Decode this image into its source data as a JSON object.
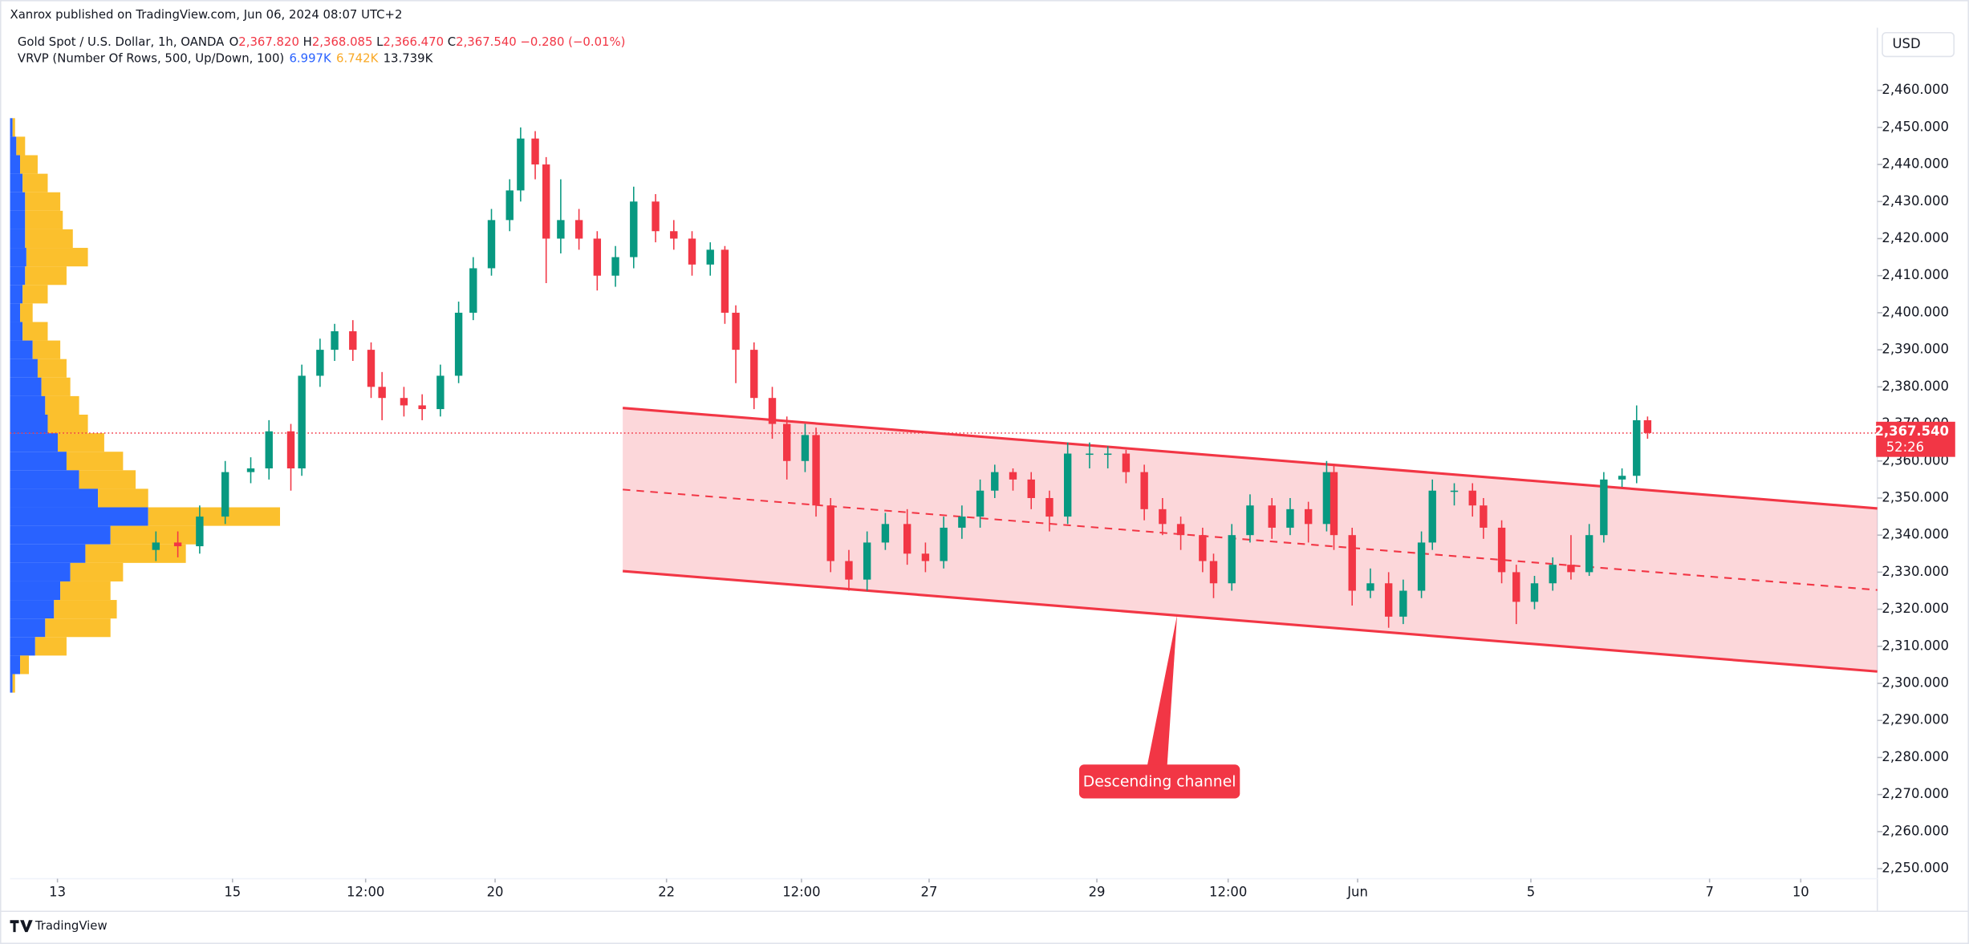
{
  "header": {
    "published": "Xanrox published on TradingView.com, Jun 06, 2024 08:07 UTC+2",
    "currency": "USD",
    "brand": "TradingView"
  },
  "chart_data": {
    "type": "candlestick",
    "title": "Gold Spot / U.S. Dollar, 1h, OANDA",
    "legend_values": [
      {
        "key": "O",
        "value": 2367.82,
        "label": "2,367.820"
      },
      {
        "key": "H",
        "value": 2368.085,
        "label": "2,368.085"
      },
      {
        "key": "L",
        "value": 2366.47,
        "label": "2,366.470"
      },
      {
        "key": "C",
        "value": 2367.54,
        "label": "2,367.540"
      }
    ],
    "change": {
      "value": -0.28,
      "label": "−0.280 (−0.01%)"
    },
    "indicator": {
      "title": "VRVP (Number Of Rows, 500, Up/Down, 100)",
      "values": [
        {
          "value": 6997,
          "label": "6.997K",
          "color": "#2962ff"
        },
        {
          "value": 6742,
          "label": "6.742K",
          "color": "#f9a825"
        },
        {
          "value": 13739,
          "label": "13.739K",
          "color": "#131722"
        }
      ]
    },
    "x": [
      40,
      46,
      52,
      59,
      66,
      71,
      77,
      80,
      85,
      89,
      94,
      99,
      102,
      108,
      113,
      118,
      123,
      127,
      132,
      137,
      140,
      144,
      147,
      151,
      156,
      161,
      166,
      171,
      177,
      182,
      187,
      192,
      196,
      199,
      204,
      209,
      213,
      218,
      221,
      225,
      230,
      235,
      240,
      246,
      251,
      256,
      261,
      266,
      270,
      275,
      280,
      285,
      290,
      296,
      301,
      306,
      311,
      316,
      321,
      327,
      330,
      335,
      340,
      346,
      351,
      356,
      361,
      363,
      368,
      373,
      378,
      382,
      387,
      390,
      396,
      401,
      404,
      409,
      413,
      418,
      423,
      428,
      433,
      437,
      442,
      446,
      449
    ],
    "open": [
      2336,
      2338,
      2337,
      2345,
      2357,
      2358,
      2368,
      2358,
      2383,
      2390,
      2395,
      2390,
      2380,
      2377,
      2375,
      2374,
      2383,
      2400,
      2412,
      2425,
      2433,
      2447,
      2440,
      2420,
      2425,
      2420,
      2410,
      2415,
      2430,
      2422,
      2420,
      2413,
      2417,
      2400,
      2390,
      2377,
      2370,
      2360,
      2367,
      2348,
      2333,
      2328,
      2338,
      2343,
      2335,
      2333,
      2342,
      2345,
      2352,
      2357,
      2355,
      2350,
      2345,
      2362,
      2362,
      2362,
      2357,
      2347,
      2343,
      2340,
      2333,
      2327,
      2340,
      2348,
      2342,
      2347,
      2343,
      2357,
      2340,
      2325,
      2327,
      2318,
      2325,
      2338,
      2352,
      2352,
      2348,
      2342,
      2330,
      2322,
      2327,
      2332,
      2330,
      2340,
      2355,
      2356,
      2371
    ],
    "high": [
      2341,
      2341,
      2348,
      2360,
      2361,
      2371,
      2370,
      2386,
      2393,
      2397,
      2398,
      2392,
      2384,
      2380,
      2378,
      2386,
      2403,
      2415,
      2428,
      2436,
      2450,
      2449,
      2442,
      2436,
      2428,
      2422,
      2418,
      2434,
      2432,
      2425,
      2422,
      2419,
      2418,
      2402,
      2392,
      2380,
      2372,
      2370,
      2369,
      2350,
      2336,
      2341,
      2346,
      2347,
      2338,
      2345,
      2348,
      2355,
      2359,
      2358,
      2357,
      2352,
      2365,
      2365,
      2364,
      2363,
      2359,
      2350,
      2345,
      2342,
      2335,
      2343,
      2351,
      2350,
      2350,
      2349,
      2360,
      2359,
      2342,
      2331,
      2330,
      2328,
      2341,
      2355,
      2354,
      2354,
      2350,
      2344,
      2332,
      2329,
      2334,
      2340,
      2343,
      2357,
      2358,
      2375,
      2372
    ],
    "low": [
      2333,
      2334,
      2335,
      2343,
      2354,
      2355,
      2352,
      2356,
      2380,
      2387,
      2387,
      2377,
      2371,
      2372,
      2371,
      2372,
      2381,
      2398,
      2410,
      2422,
      2430,
      2436,
      2408,
      2416,
      2417,
      2406,
      2407,
      2412,
      2419,
      2417,
      2410,
      2410,
      2397,
      2381,
      2374,
      2366,
      2355,
      2357,
      2345,
      2330,
      2325,
      2325,
      2336,
      2332,
      2330,
      2331,
      2339,
      2342,
      2350,
      2352,
      2347,
      2341,
      2343,
      2358,
      2358,
      2354,
      2344,
      2340,
      2336,
      2330,
      2323,
      2325,
      2338,
      2339,
      2340,
      2338,
      2341,
      2336,
      2321,
      2323,
      2315,
      2316,
      2323,
      2336,
      2348,
      2345,
      2339,
      2327,
      2316,
      2320,
      2325,
      2328,
      2329,
      2338,
      2353,
      2354,
      2366
    ],
    "close": [
      2338,
      2337,
      2345,
      2357,
      2358,
      2368,
      2358,
      2383,
      2390,
      2395,
      2390,
      2380,
      2377,
      2375,
      2374,
      2383,
      2400,
      2412,
      2425,
      2433,
      2447,
      2440,
      2420,
      2425,
      2420,
      2410,
      2415,
      2430,
      2422,
      2420,
      2413,
      2417,
      2400,
      2390,
      2377,
      2370,
      2360,
      2367,
      2348,
      2333,
      2328,
      2338,
      2343,
      2335,
      2333,
      2342,
      2345,
      2352,
      2357,
      2355,
      2350,
      2345,
      2362,
      2362,
      2362,
      2357,
      2347,
      2343,
      2340,
      2333,
      2327,
      2340,
      2348,
      2342,
      2347,
      2343,
      2357,
      2340,
      2325,
      2327,
      2318,
      2325,
      2338,
      2352,
      2352,
      2348,
      2342,
      2330,
      2322,
      2327,
      2332,
      2330,
      2340,
      2355,
      2356,
      2371,
      2367.54
    ],
    "up_color": "#089981",
    "down_color": "#f23645",
    "xlim": [
      0,
      512
    ],
    "xticks": [
      {
        "value": 13,
        "label": "13"
      },
      {
        "value": 61,
        "label": "15"
      },
      {
        "value": 97.5,
        "label": "12:00"
      },
      {
        "value": 133,
        "label": "20"
      },
      {
        "value": 180,
        "label": "22"
      },
      {
        "value": 217,
        "label": "12:00"
      },
      {
        "value": 252,
        "label": "27"
      },
      {
        "value": 298,
        "label": "29"
      },
      {
        "value": 334,
        "label": "12:00"
      },
      {
        "value": 369.5,
        "label": "Jun"
      },
      {
        "value": 417,
        "label": "5"
      },
      {
        "value": 466,
        "label": "7"
      },
      {
        "value": 491,
        "label": "10"
      }
    ],
    "ylim": [
      2247.3,
      2475.9
    ],
    "yticks": [
      {
        "value": 2250,
        "label": "2,250.000"
      },
      {
        "value": 2260,
        "label": "2,260.000"
      },
      {
        "value": 2270,
        "label": "2,270.000"
      },
      {
        "value": 2280,
        "label": "2,280.000"
      },
      {
        "value": 2290,
        "label": "2,290.000"
      },
      {
        "value": 2300,
        "label": "2,300.000"
      },
      {
        "value": 2310,
        "label": "2,310.000"
      },
      {
        "value": 2320,
        "label": "2,320.000"
      },
      {
        "value": 2330,
        "label": "2,330.000"
      },
      {
        "value": 2340,
        "label": "2,340.000"
      },
      {
        "value": 2350,
        "label": "2,350.000"
      },
      {
        "value": 2360,
        "label": "2,360.000"
      },
      {
        "value": 2370,
        "label": "2,370.000"
      },
      {
        "value": 2380,
        "label": "2,380.000"
      },
      {
        "value": 2390,
        "label": "2,390.000"
      },
      {
        "value": 2400,
        "label": "2,400.000"
      },
      {
        "value": 2410,
        "label": "2,410.000"
      },
      {
        "value": 2420,
        "label": "2,420.000"
      },
      {
        "value": 2430,
        "label": "2,430.000"
      },
      {
        "value": 2440,
        "label": "2,440.000"
      },
      {
        "value": 2450,
        "label": "2,450.000"
      },
      {
        "value": 2460,
        "label": "2,460.000"
      }
    ],
    "last_price": {
      "value": 2367.54,
      "label": "2,367.540",
      "countdown": "52:26",
      "color": "#f23645"
    },
    "channel": {
      "x": [
        168,
        512
      ],
      "upper": [
        2374.3,
        2347.2
      ],
      "lower": [
        2330.3,
        2303.2
      ],
      "color": "#f23645"
    },
    "annotation": {
      "text": "Descending channel",
      "x": 320,
      "y": 2318.4,
      "color": "#f23645"
    },
    "volume_profile": {
      "prices": [
        2450,
        2445,
        2440,
        2435,
        2430,
        2425,
        2420,
        2415,
        2410,
        2405,
        2400,
        2395,
        2390,
        2385,
        2380,
        2375,
        2370,
        2365,
        2360,
        2355,
        2350,
        2345,
        2340,
        2335,
        2330,
        2325,
        2320,
        2315,
        2310,
        2305,
        2300
      ],
      "up": [
        2,
        5,
        8,
        10,
        12,
        12,
        12,
        13,
        12,
        10,
        8,
        10,
        18,
        22,
        25,
        28,
        30,
        38,
        45,
        55,
        70,
        110,
        80,
        60,
        48,
        40,
        35,
        28,
        20,
        8,
        2
      ],
      "down": [
        2,
        7,
        14,
        20,
        28,
        30,
        38,
        49,
        33,
        20,
        10,
        20,
        22,
        23,
        23,
        27,
        32,
        37,
        45,
        45,
        40,
        105,
        70,
        80,
        42,
        40,
        50,
        52,
        25,
        7,
        2
      ],
      "up_color": "#2962ff",
      "down_color": "#fbc02d"
    }
  }
}
